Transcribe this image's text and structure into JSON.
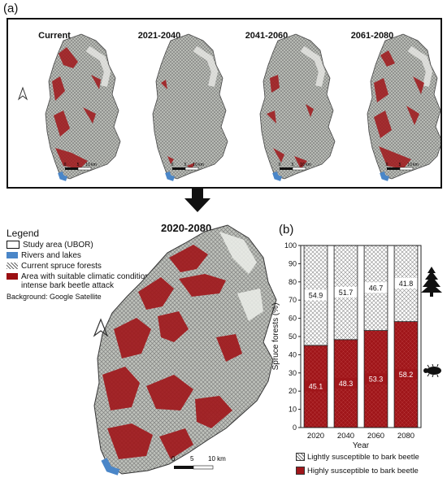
{
  "panel_a": {
    "label": "(a)",
    "periods": [
      "Current",
      "2021-2040",
      "2041-2060",
      "2061-2080"
    ],
    "plus": "+",
    "scale": {
      "zero": "0",
      "five": "5",
      "ten": "10 km"
    }
  },
  "legend": {
    "title": "Legend",
    "items": [
      {
        "label": "Study area (UBOR)",
        "swatch": "outline"
      },
      {
        "label": "Rivers and lakes",
        "swatch": "#4a86c8"
      },
      {
        "label": "Current spruce forests",
        "swatch": "hatch"
      },
      {
        "label": "Area with suitable climatic conditions for intense bark beetle attack",
        "swatch": "#9b0f12"
      }
    ],
    "background": "Background: Google Satellite"
  },
  "big_map": {
    "title": "2020-2080",
    "scale": {
      "zero": "0",
      "five": "5",
      "ten": "10 km"
    }
  },
  "panel_b": {
    "label": "(b)",
    "icons": [
      "spruce-tree-icon",
      "bark-beetle-icon"
    ],
    "legend": [
      "Lightly susceptible to bark beetle",
      "Highly susceptible to bark beetle"
    ]
  },
  "colors": {
    "high": "#a0161a",
    "hatch": "#6b6b6b",
    "terrain": "#b9bcb7",
    "water": "#4a86c8"
  },
  "chart_data": {
    "type": "bar",
    "stacked": true,
    "categories": [
      "2020",
      "2040",
      "2060",
      "2080"
    ],
    "series": [
      {
        "name": "Highly susceptible to bark beetle",
        "values": [
          45.1,
          48.3,
          53.3,
          58.2
        ]
      },
      {
        "name": "Lightly susceptible to bark beetle",
        "values": [
          54.9,
          51.7,
          46.7,
          41.8
        ]
      }
    ],
    "xlabel": "Year",
    "ylabel": "Spruce forests (%)",
    "ylim": [
      0,
      100
    ],
    "yticks": [
      0,
      10,
      20,
      30,
      40,
      50,
      60,
      70,
      80,
      90,
      100
    ],
    "legend_position": "bottom"
  }
}
